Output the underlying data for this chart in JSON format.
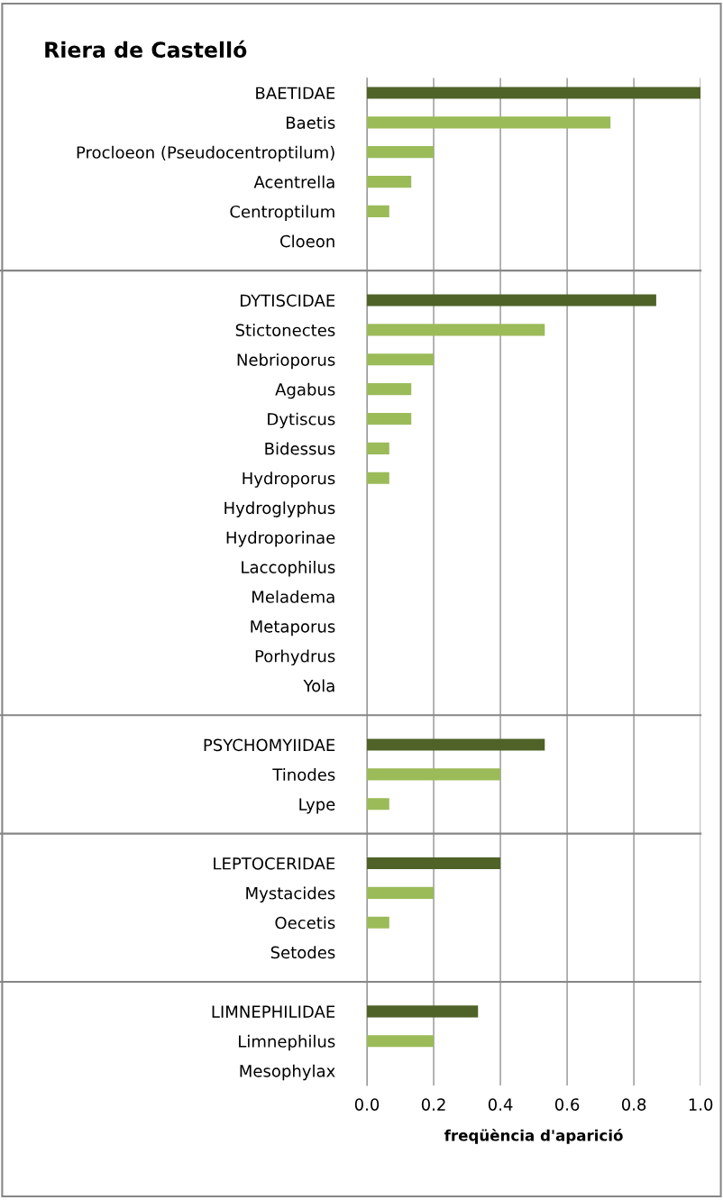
{
  "chart_data": {
    "type": "bar",
    "orientation": "horizontal",
    "title": "Riera de Castelló",
    "xlabel": "freqüència d'aparició",
    "categories": [
      "BAETIDAE",
      "Baetis",
      "Procloeon (Pseudocentroptilum)",
      "Acentrella",
      "Centroptilum",
      "Cloeon",
      null,
      "DYTISCIDAE",
      "Stictonectes",
      "Nebrioporus",
      "Agabus",
      "Dytiscus",
      "Bidessus",
      "Hydroporus",
      "Hydroglyphus",
      "Hydroporinae",
      "Laccophilus",
      "Meladema",
      "Metaporus",
      "Porhydrus",
      "Yola",
      null,
      "PSYCHOMYIIDAE",
      "Tinodes",
      "Lype",
      null,
      "LEPTOCERIDAE",
      "Mystacides",
      "Oecetis",
      "Setodes",
      null,
      "LIMNEPHILIDAE",
      "Limnephilus",
      "Mesophylax"
    ],
    "values": [
      1.0,
      0.73,
      0.2,
      0.133,
      0.067,
      0,
      null,
      0.867,
      0.533,
      0.2,
      0.133,
      0.133,
      0.067,
      0.067,
      0,
      0,
      0,
      0,
      0,
      0,
      0,
      null,
      0.533,
      0.4,
      0.067,
      null,
      0.4,
      0.2,
      0.067,
      0,
      null,
      0.333,
      0.2,
      0
    ],
    "colors": [
      "#4f6228",
      "#9bbb59",
      "#9bbb59",
      "#9bbb59",
      "#9bbb59",
      "#9bbb59",
      null,
      "#4f6228",
      "#9bbb59",
      "#9bbb59",
      "#9bbb59",
      "#9bbb59",
      "#9bbb59",
      "#9bbb59",
      "#9bbb59",
      "#9bbb59",
      "#9bbb59",
      "#9bbb59",
      "#9bbb59",
      "#9bbb59",
      "#9bbb59",
      null,
      "#4f6228",
      "#9bbb59",
      "#9bbb59",
      null,
      "#4f6228",
      "#9bbb59",
      "#9bbb59",
      "#9bbb59",
      null,
      "#4f6228",
      "#9bbb59",
      "#9bbb59"
    ],
    "xlim": [
      0,
      1.0
    ],
    "xticks": [
      {
        "value": 0,
        "label": "0.0"
      },
      {
        "value": 0.2,
        "label": "0.2"
      },
      {
        "value": 0.4,
        "label": "0.4"
      },
      {
        "value": 0.6,
        "label": "0.6"
      },
      {
        "value": 0.8,
        "label": "0.8"
      },
      {
        "value": 1.0,
        "label": "1.0"
      }
    ],
    "grid": "x",
    "legend": false
  }
}
